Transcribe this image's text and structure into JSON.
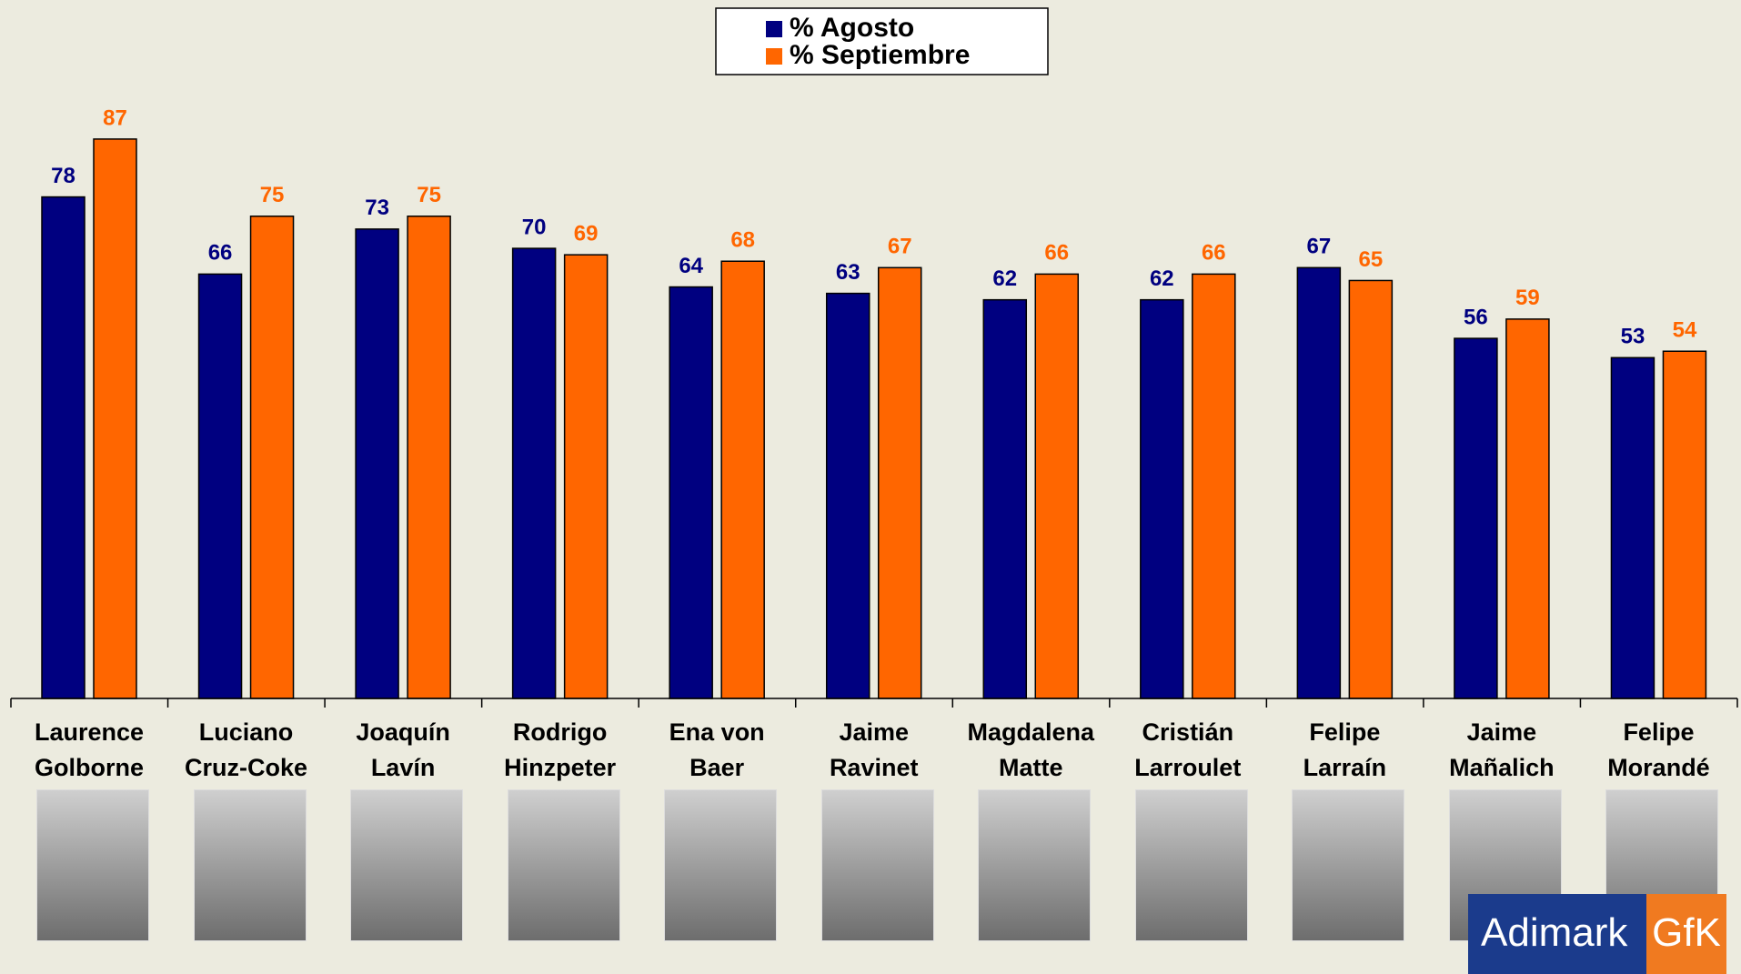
{
  "chart_data": {
    "type": "bar",
    "categories": [
      "Laurence\nGolborne",
      "Luciano\nCruz-Coke",
      "Joaquín\nLavín",
      "Rodrigo\nHinzpeter",
      "Ena von\nBaer",
      "Jaime\nRavinet",
      "Magdalena\nMatte",
      "Cristián\nLarroulet",
      "Felipe\nLarraín",
      "Jaime\nMañalich",
      "Felipe\nMorandé"
    ],
    "series": [
      {
        "name": "% Agosto",
        "color": "#000080",
        "values": [
          78,
          66,
          73,
          70,
          64,
          63,
          62,
          62,
          67,
          56,
          53
        ]
      },
      {
        "name": "% Septiembre",
        "color": "#ff6600",
        "values": [
          87,
          75,
          75,
          69,
          68,
          67,
          66,
          66,
          65,
          59,
          54
        ]
      }
    ],
    "ylim": [
      0,
      100
    ],
    "legend": "top"
  },
  "logo": {
    "left": "Adimark",
    "right": "GfK"
  }
}
